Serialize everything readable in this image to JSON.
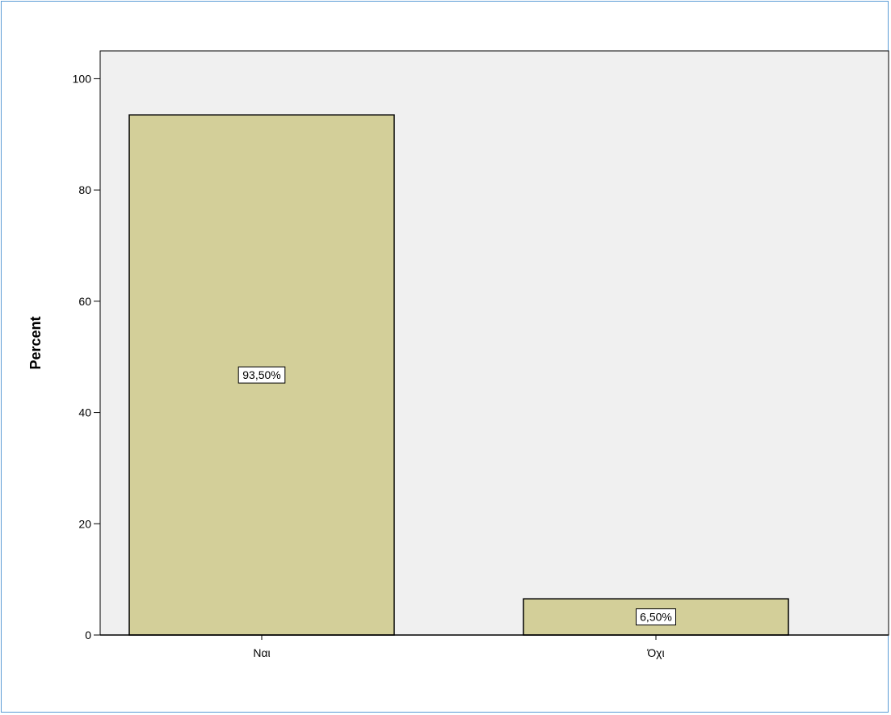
{
  "chart_data": {
    "type": "bar",
    "categories": [
      "Ναι",
      "Όχι"
    ],
    "values": [
      93.5,
      6.5
    ],
    "data_labels": [
      "93,50%",
      "6,50%"
    ],
    "title": "",
    "xlabel": "",
    "ylabel": "Percent",
    "ylim": [
      0,
      105
    ],
    "yticks": [
      0,
      20,
      40,
      60,
      80,
      100
    ],
    "grid": false,
    "colors": {
      "bar_fill": "#d3cf99",
      "bar_stroke": "#000000",
      "plot_bg": "#f0f0f0",
      "frame_border": "#5b9bd5"
    }
  }
}
